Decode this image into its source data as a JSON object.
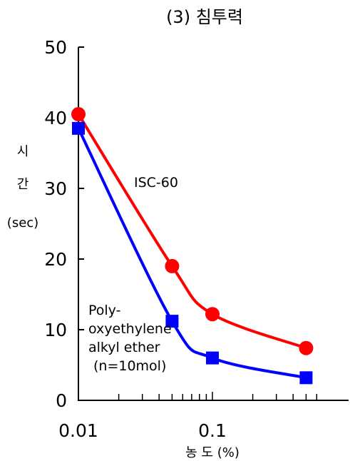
{
  "chart_data": {
    "type": "line",
    "title": "(3) 침투력",
    "xlabel": "농 도 (%)",
    "ylabel": [
      "시",
      "간",
      "(sec)"
    ],
    "x_scale": "log",
    "xlim": [
      0.01,
      0.6
    ],
    "ylim": [
      0,
      50
    ],
    "x_tick_labels": [
      {
        "value": 0.01,
        "label": "0.01"
      },
      {
        "value": 0.1,
        "label": "0.1"
      }
    ],
    "y_ticks": [
      0,
      10,
      20,
      30,
      40,
      50
    ],
    "grid": false,
    "series": [
      {
        "name": "ISC-60",
        "color": "#ff0000",
        "marker": "circle",
        "x": [
          0.01,
          0.05,
          0.1,
          0.5
        ],
        "y": [
          40.5,
          19,
          12.2,
          7.4
        ]
      },
      {
        "name": "Poly- oxyethylene alkyl ether (n=10mol)",
        "color": "#0000ff",
        "marker": "square",
        "x": [
          0.01,
          0.05,
          0.1,
          0.5
        ],
        "y": [
          38.5,
          11.2,
          6,
          3.2
        ]
      }
    ],
    "annotations": {
      "isc60": "ISC-60",
      "poly_lines": [
        "Poly-",
        "oxyethylene",
        "alkyl ether",
        "(n=10mol)"
      ]
    }
  }
}
